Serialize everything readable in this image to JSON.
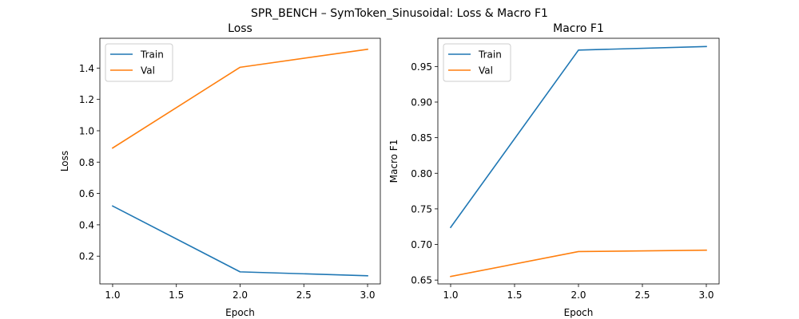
{
  "figure": {
    "suptitle": "SPR_BENCH – SymToken_Sinusoidal: Loss & Macro F1"
  },
  "chart_data": [
    {
      "type": "line",
      "title": "Loss",
      "xlabel": "Epoch",
      "ylabel": "Loss",
      "x": [
        1,
        2,
        3
      ],
      "xlim": [
        0.9,
        3.1
      ],
      "ylim": [
        0.023,
        1.59
      ],
      "xticks": [
        1.0,
        1.5,
        2.0,
        2.5,
        3.0
      ],
      "xtick_labels": [
        "1.0",
        "1.5",
        "2.0",
        "2.5",
        "3.0"
      ],
      "yticks": [
        0.2,
        0.4,
        0.6,
        0.8,
        1.0,
        1.2,
        1.4
      ],
      "ytick_labels": [
        "0.2",
        "0.4",
        "0.6",
        "0.8",
        "1.0",
        "1.2",
        "1.4"
      ],
      "grid": false,
      "legend": "upper left",
      "series": [
        {
          "name": "Train",
          "values": [
            0.52,
            0.1,
            0.075
          ],
          "color": "#1f77b4"
        },
        {
          "name": "Val",
          "values": [
            0.89,
            1.405,
            1.52
          ],
          "color": "#ff7f0e"
        }
      ]
    },
    {
      "type": "line",
      "title": "Macro F1",
      "xlabel": "Epoch",
      "ylabel": "Macro F1",
      "x": [
        1,
        2,
        3
      ],
      "xlim": [
        0.9,
        3.1
      ],
      "ylim": [
        0.6446,
        0.9896
      ],
      "xticks": [
        1.0,
        1.5,
        2.0,
        2.5,
        3.0
      ],
      "xtick_labels": [
        "1.0",
        "1.5",
        "2.0",
        "2.5",
        "3.0"
      ],
      "yticks": [
        0.65,
        0.7,
        0.75,
        0.8,
        0.85,
        0.9,
        0.95
      ],
      "ytick_labels": [
        "0.65",
        "0.70",
        "0.75",
        "0.80",
        "0.85",
        "0.90",
        "0.95"
      ],
      "grid": false,
      "legend": "upper left",
      "series": [
        {
          "name": "Train",
          "values": [
            0.724,
            0.973,
            0.978
          ],
          "color": "#1f77b4"
        },
        {
          "name": "Val",
          "values": [
            0.655,
            0.69,
            0.692
          ],
          "color": "#ff7f0e"
        }
      ]
    }
  ]
}
